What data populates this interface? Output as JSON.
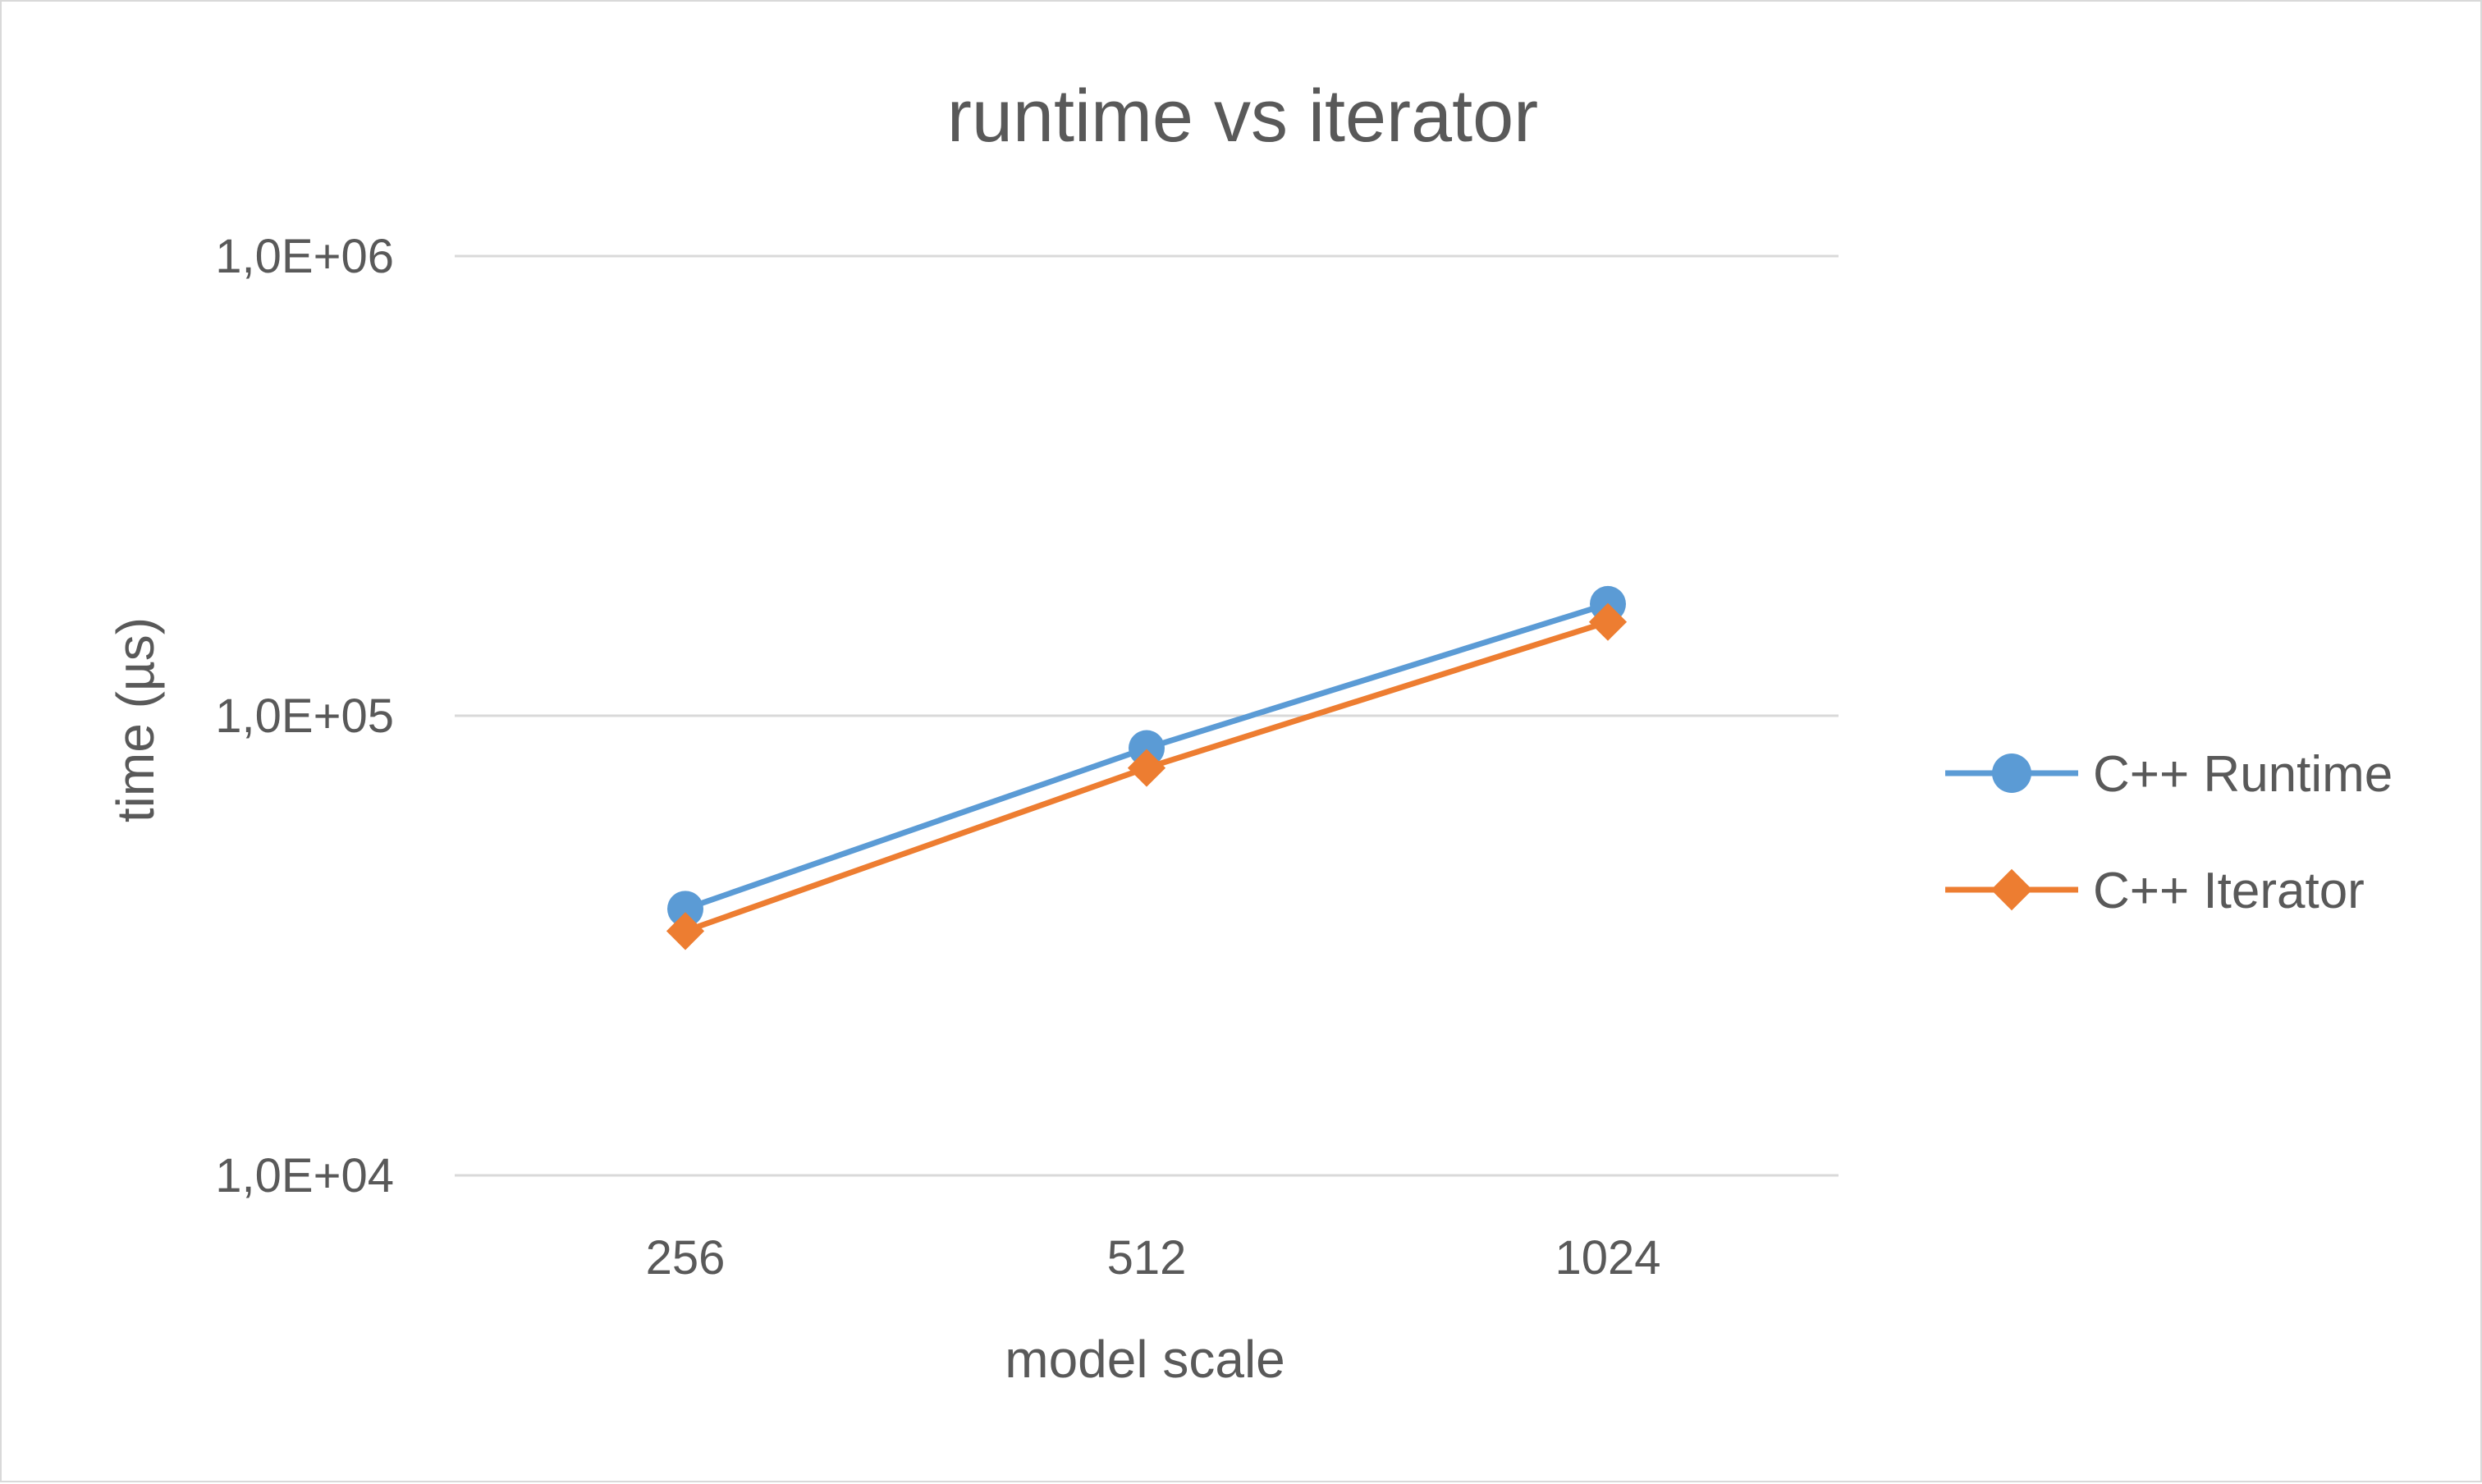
{
  "chart_data": {
    "type": "line",
    "title": "runtime vs iterator",
    "xlabel": "model scale",
    "ylabel": "time (µs)",
    "categories": [
      "256",
      "512",
      "1024"
    ],
    "y_scale": "log",
    "ylim": [
      10000,
      1000000
    ],
    "y_ticks": [
      {
        "value": 10000,
        "label": "1,0E+04"
      },
      {
        "value": 100000,
        "label": "1,0E+05"
      },
      {
        "value": 1000000,
        "label": "1,0E+06"
      }
    ],
    "grid": true,
    "legend_position": "right",
    "series": [
      {
        "name": "C++ Runtime",
        "values": [
          38000,
          85000,
          175000
        ],
        "color": "#5b9bd5",
        "marker": "circle"
      },
      {
        "name": "C++ Iterator",
        "values": [
          34000,
          77000,
          160000
        ],
        "color": "#ed7d31",
        "marker": "diamond"
      }
    ]
  }
}
